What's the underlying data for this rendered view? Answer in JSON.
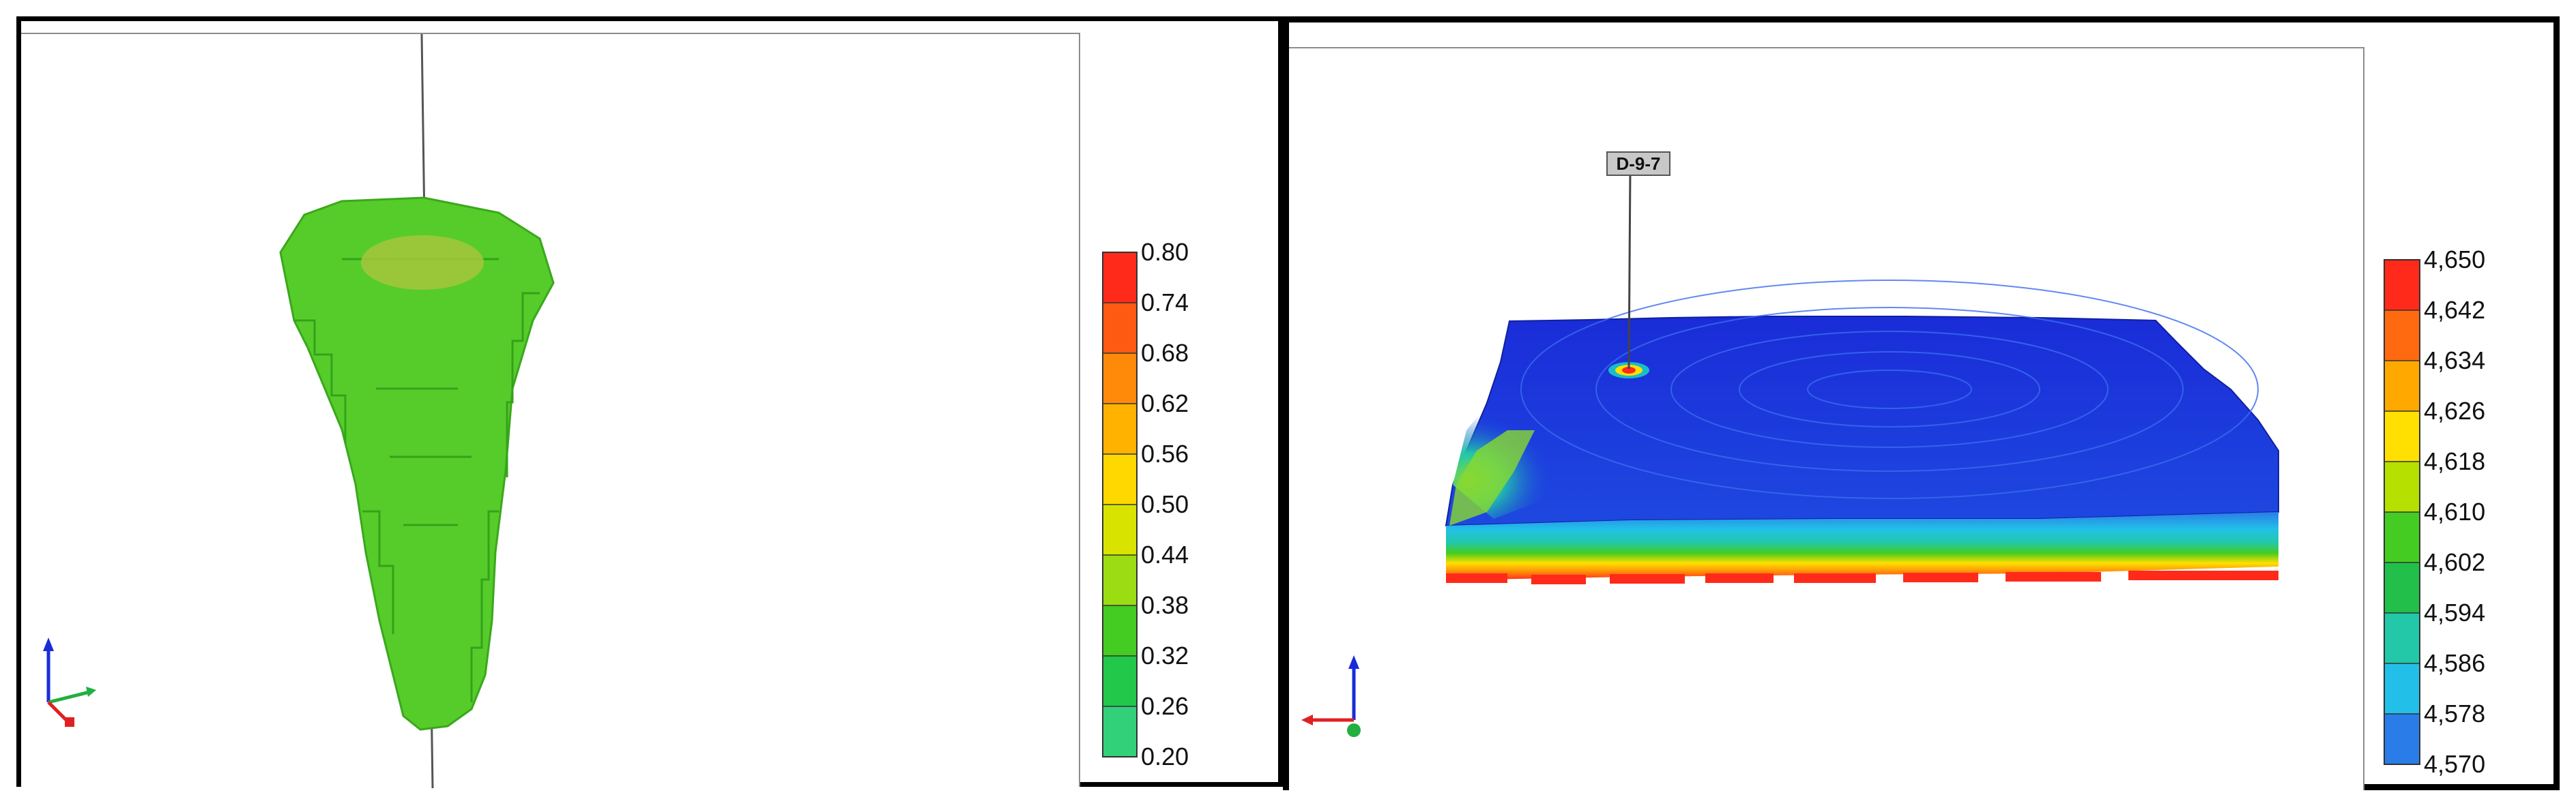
{
  "left_panel": {
    "colorbar": {
      "ticks": [
        "0.80",
        "0.74",
        "0.68",
        "0.62",
        "0.56",
        "0.50",
        "0.44",
        "0.38",
        "0.32",
        "0.26",
        "0.20"
      ],
      "colors": [
        "#ff2a1a",
        "#ff5a12",
        "#ff8a0a",
        "#ffb200",
        "#ffd800",
        "#d8e400",
        "#9cdc12",
        "#44cc22",
        "#22c84a",
        "#33d07a",
        "#44dc96"
      ]
    },
    "model_color": "#55cc2a",
    "highlight_color": "#a6c63c"
  },
  "right_panel": {
    "well_label": "D-9-7",
    "colorbar": {
      "ticks": [
        "4,650",
        "4,642",
        "4,634",
        "4,626",
        "4,618",
        "4,610",
        "4,602",
        "4,594",
        "4,586",
        "4,578",
        "4,570"
      ],
      "colors": [
        "#ff2a1a",
        "#ff6a10",
        "#ffa800",
        "#ffe000",
        "#b6e000",
        "#44cc22",
        "#22c04a",
        "#22c8a8",
        "#22c0e8",
        "#2a7ce8",
        "#1a2cd8"
      ]
    }
  }
}
